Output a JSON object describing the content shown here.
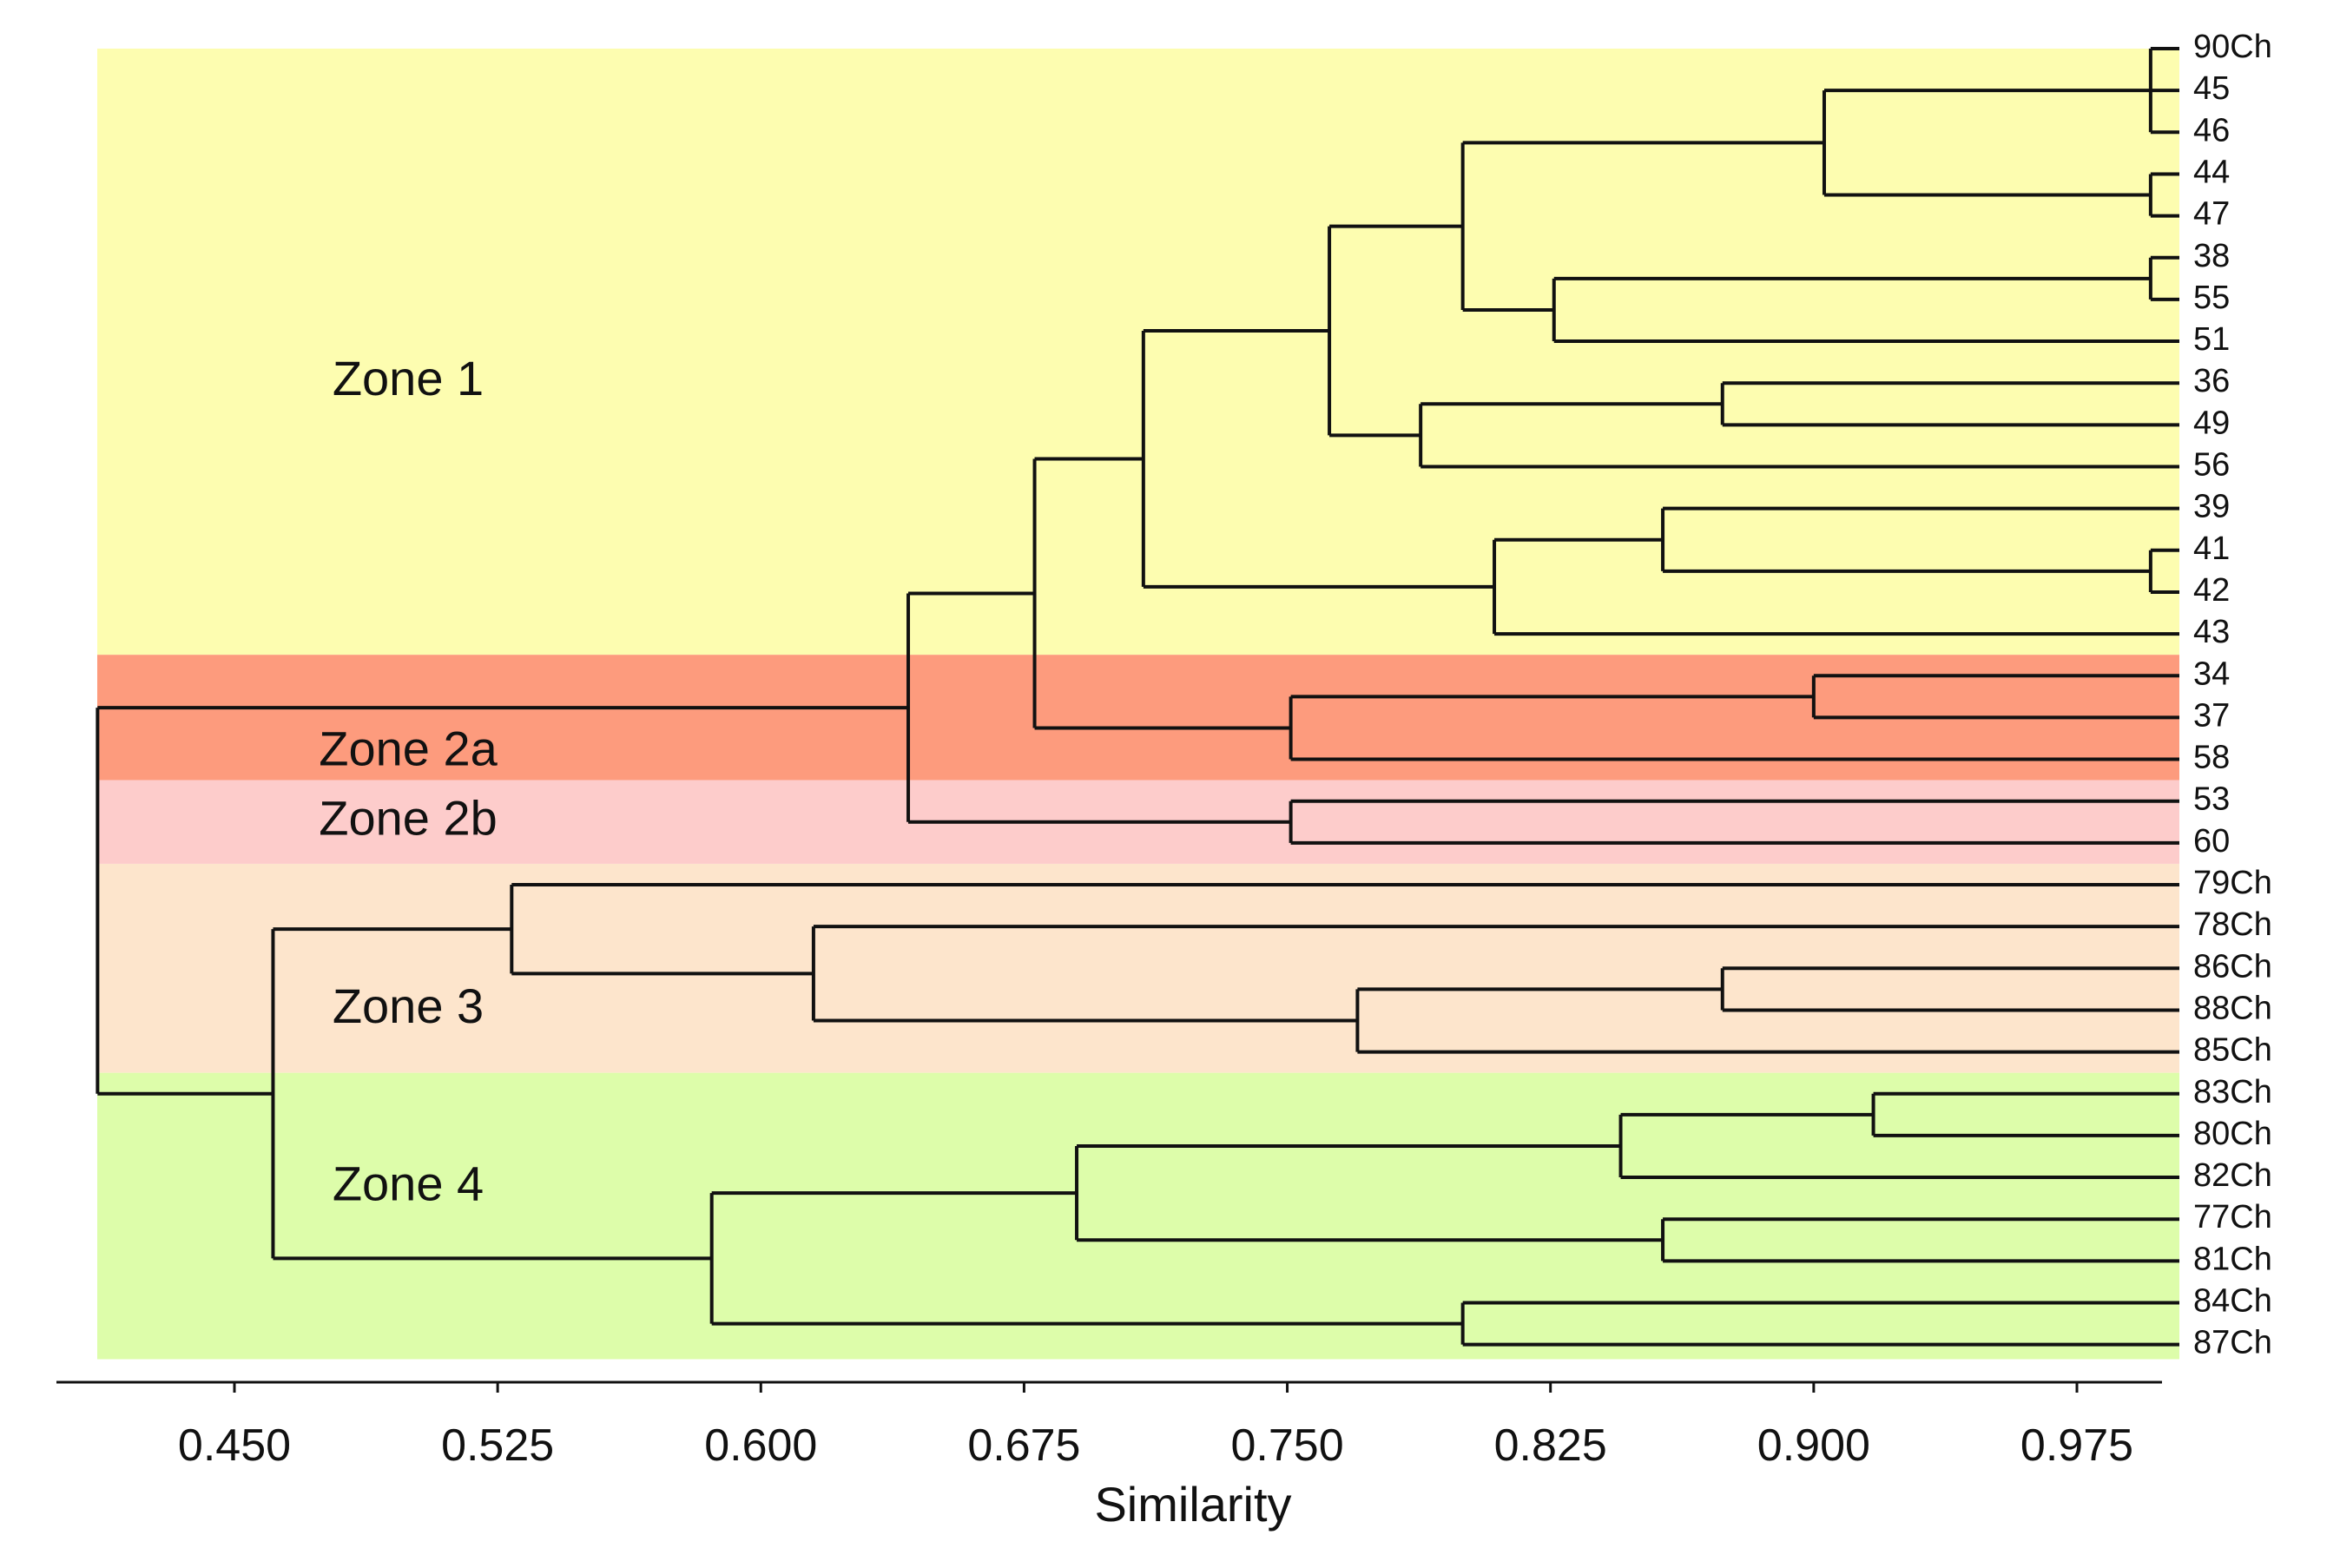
{
  "chart_data": {
    "type": "dendrogram",
    "xlabel": "Similarity",
    "xlim": [
      0.4,
      1.0
    ],
    "xticks": [
      "0.450",
      "0.525",
      "0.600",
      "0.675",
      "0.750",
      "0.825",
      "0.900",
      "0.975"
    ],
    "leaves": [
      "90Ch",
      "45",
      "46",
      "44",
      "47",
      "38",
      "55",
      "51",
      "36",
      "49",
      "56",
      "39",
      "41",
      "42",
      "43",
      "34",
      "37",
      "58",
      "53",
      "60",
      "79Ch",
      "78Ch",
      "86Ch",
      "88Ch",
      "85Ch",
      "83Ch",
      "80Ch",
      "82Ch",
      "77Ch",
      "81Ch",
      "84Ch",
      "87Ch"
    ],
    "zones": [
      {
        "name": "Zone 1",
        "first_leaf": "90Ch",
        "last_leaf": "43",
        "color": "#fdfdb0"
      },
      {
        "name": "Zone 2a",
        "first_leaf": "34",
        "last_leaf": "58",
        "color": "#fd9b7d"
      },
      {
        "name": "Zone 2b",
        "first_leaf": "53",
        "last_leaf": "60",
        "color": "#fdcccb"
      },
      {
        "name": "Zone 3",
        "first_leaf": "79Ch",
        "last_leaf": "85Ch",
        "color": "#fde5cc"
      },
      {
        "name": "Zone 4",
        "first_leaf": "83Ch",
        "last_leaf": "87Ch",
        "color": "#ddfdaa"
      }
    ],
    "merges": [
      {
        "id": "n1",
        "children": [
          "90Ch",
          "45",
          "46"
        ],
        "similarity": 0.996
      },
      {
        "id": "n2",
        "children": [
          "44",
          "47"
        ],
        "similarity": 0.996
      },
      {
        "id": "n3",
        "children": [
          "n1",
          "n2"
        ],
        "similarity": 0.903
      },
      {
        "id": "n4",
        "children": [
          "38",
          "55"
        ],
        "similarity": 0.996
      },
      {
        "id": "n5",
        "children": [
          "n4",
          "51"
        ],
        "similarity": 0.826
      },
      {
        "id": "n6",
        "children": [
          "n3",
          "n5"
        ],
        "similarity": 0.8
      },
      {
        "id": "n7",
        "children": [
          "36",
          "49"
        ],
        "similarity": 0.874
      },
      {
        "id": "n8",
        "children": [
          "n7",
          "56"
        ],
        "similarity": 0.788
      },
      {
        "id": "n9",
        "children": [
          "n6",
          "n8"
        ],
        "similarity": 0.762
      },
      {
        "id": "n10",
        "children": [
          "41",
          "42"
        ],
        "similarity": 0.996
      },
      {
        "id": "n11",
        "children": [
          "39",
          "n10"
        ],
        "similarity": 0.857
      },
      {
        "id": "n12",
        "children": [
          "n11",
          "43"
        ],
        "similarity": 0.809
      },
      {
        "id": "n13",
        "children": [
          "n9",
          "n12"
        ],
        "similarity": 0.709
      },
      {
        "id": "n14",
        "children": [
          "34",
          "37"
        ],
        "similarity": 0.9
      },
      {
        "id": "n15",
        "children": [
          "n14",
          "58"
        ],
        "similarity": 0.751
      },
      {
        "id": "n16",
        "children": [
          "n13",
          "n15"
        ],
        "similarity": 0.678
      },
      {
        "id": "n17",
        "children": [
          "53",
          "60"
        ],
        "similarity": 0.751
      },
      {
        "id": "n18",
        "children": [
          "n16",
          "n17"
        ],
        "similarity": 0.642
      },
      {
        "id": "n19",
        "children": [
          "86Ch",
          "88Ch"
        ],
        "similarity": 0.874
      },
      {
        "id": "n20",
        "children": [
          "n19",
          "85Ch"
        ],
        "similarity": 0.77
      },
      {
        "id": "n21",
        "children": [
          "78Ch",
          "n20"
        ],
        "similarity": 0.615
      },
      {
        "id": "n22",
        "children": [
          "79Ch",
          "n21"
        ],
        "similarity": 0.529
      },
      {
        "id": "n23",
        "children": [
          "83Ch",
          "80Ch"
        ],
        "similarity": 0.917
      },
      {
        "id": "n24",
        "children": [
          "n23",
          "82Ch"
        ],
        "similarity": 0.845
      },
      {
        "id": "n25",
        "children": [
          "77Ch",
          "81Ch"
        ],
        "similarity": 0.857
      },
      {
        "id": "n26",
        "children": [
          "n24",
          "n25"
        ],
        "similarity": 0.69
      },
      {
        "id": "n27",
        "children": [
          "84Ch",
          "87Ch"
        ],
        "similarity": 0.8
      },
      {
        "id": "n28",
        "children": [
          "n26",
          "n27"
        ],
        "similarity": 0.586
      },
      {
        "id": "n29",
        "children": [
          "n22",
          "n28"
        ],
        "similarity": 0.461
      },
      {
        "id": "n30",
        "children": [
          "n18",
          "n29"
        ],
        "similarity": 0.411
      }
    ]
  }
}
